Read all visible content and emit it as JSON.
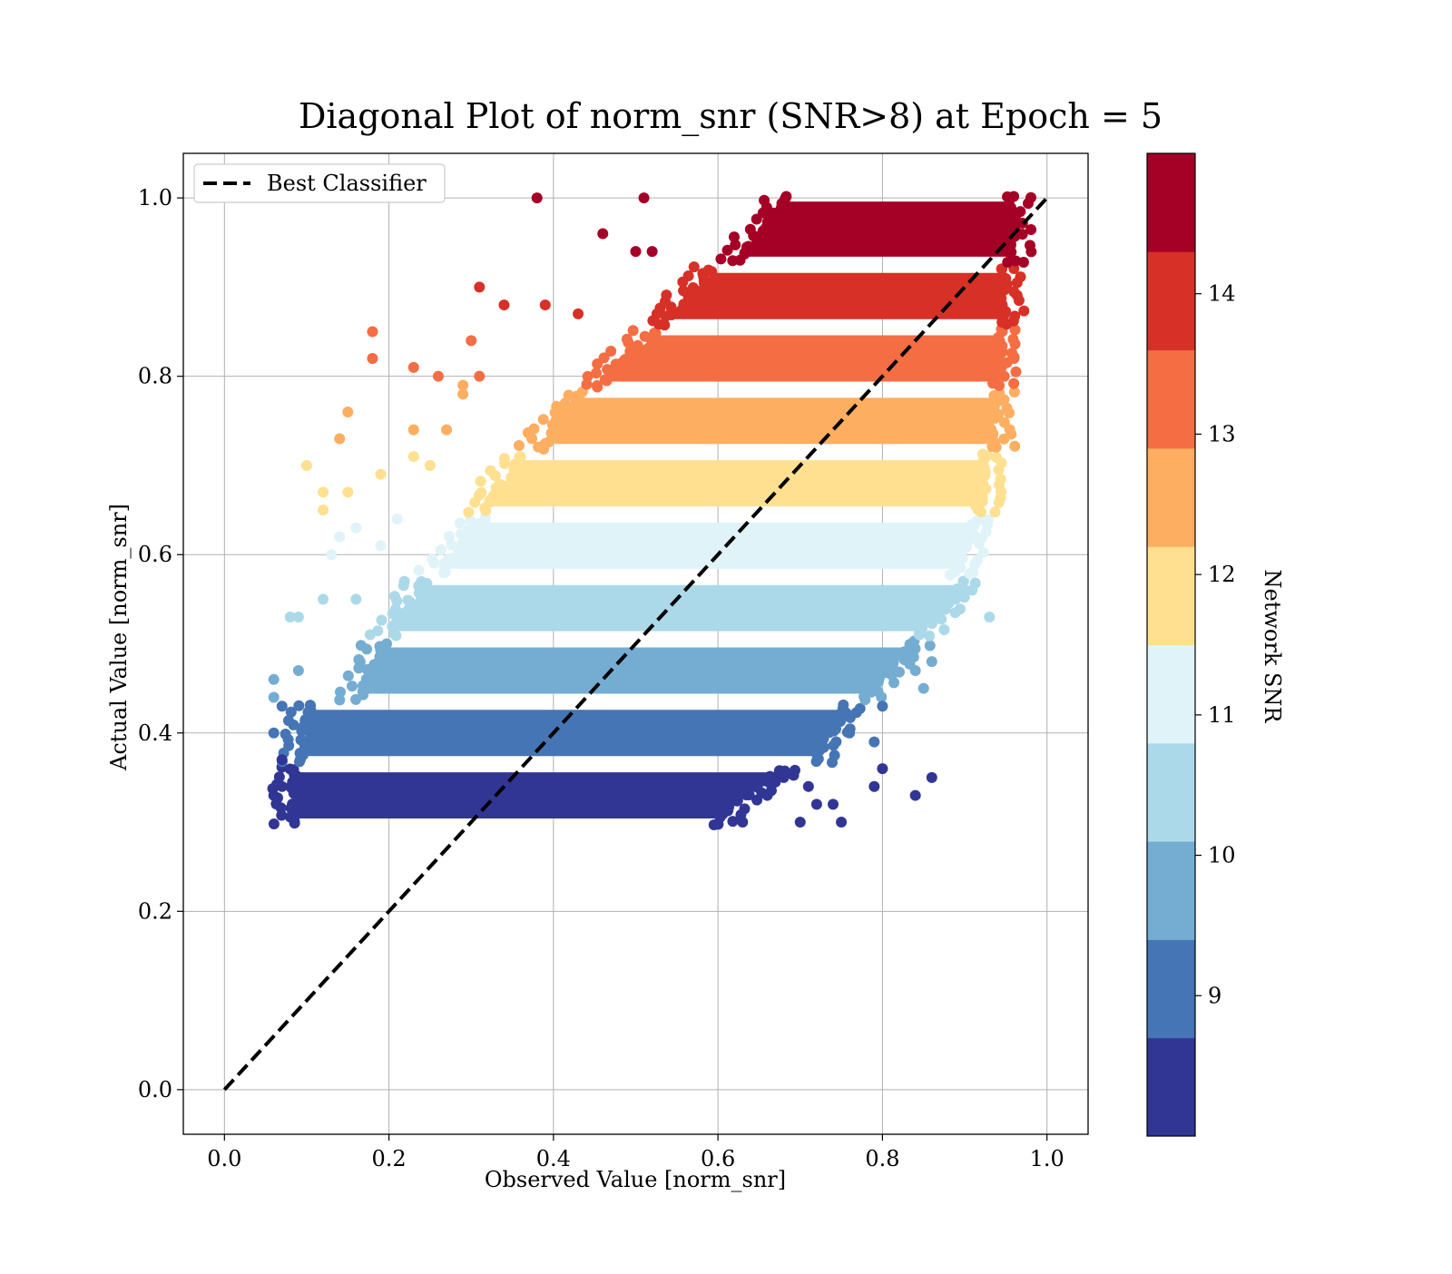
{
  "chart_data": {
    "type": "scatter",
    "title": "Diagonal Plot of norm_snr (SNR>8) at Epoch = 5",
    "xlabel": "Observed Value [norm_snr]",
    "ylabel": "Actual Value [norm_snr]",
    "xlim": [
      -0.05,
      1.05
    ],
    "ylim": [
      -0.05,
      1.05
    ],
    "xticks": [
      0.0,
      0.2,
      0.4,
      0.6,
      0.8,
      1.0
    ],
    "yticks": [
      0.0,
      0.2,
      0.4,
      0.6,
      0.8,
      1.0
    ],
    "xtick_labels": [
      "0.0",
      "0.2",
      "0.4",
      "0.6",
      "0.8",
      "1.0"
    ],
    "ytick_labels": [
      "0.0",
      "0.2",
      "0.4",
      "0.6",
      "0.8",
      "1.0"
    ],
    "grid": true,
    "legend": {
      "location": "upper left",
      "entries": [
        {
          "label": "Best Classifier",
          "style": "dashed",
          "color": "#000000"
        }
      ]
    },
    "reference_line": {
      "name": "Best Classifier",
      "x": [
        0.0,
        1.0
      ],
      "y": [
        0.0,
        1.0
      ]
    },
    "colorbar": {
      "label": "Network SNR",
      "range": [
        8,
        15
      ],
      "ticks": [
        9,
        10,
        11,
        12,
        13,
        14
      ],
      "tick_labels": [
        "9",
        "10",
        "11",
        "12",
        "13",
        "14"
      ],
      "colors": [
        "#313695",
        "#4575b4",
        "#74add1",
        "#abd9e9",
        "#e0f3f8",
        "#fee090",
        "#fdae61",
        "#f46d43",
        "#d73027",
        "#a50026"
      ]
    },
    "bands": [
      {
        "color": "#313695",
        "y": [
          0.3,
          0.36
        ],
        "x": [
          0.08,
          0.6
        ],
        "x_top": [
          0.08,
          0.68
        ]
      },
      {
        "color": "#4575b4",
        "y": [
          0.37,
          0.43
        ],
        "x": [
          0.09,
          0.72
        ],
        "x_top": [
          0.1,
          0.76
        ]
      },
      {
        "color": "#74add1",
        "y": [
          0.44,
          0.5
        ],
        "x": [
          0.16,
          0.78
        ],
        "x_top": [
          0.19,
          0.84
        ]
      },
      {
        "color": "#abd9e9",
        "y": [
          0.51,
          0.57
        ],
        "x": [
          0.2,
          0.85
        ],
        "x_top": [
          0.24,
          0.9
        ]
      },
      {
        "color": "#e0f3f8",
        "y": [
          0.58,
          0.64
        ],
        "x": [
          0.26,
          0.89
        ],
        "x_top": [
          0.31,
          0.92
        ]
      },
      {
        "color": "#fee090",
        "y": [
          0.65,
          0.71
        ],
        "x": [
          0.31,
          0.92
        ],
        "x_top": [
          0.36,
          0.93
        ]
      },
      {
        "color": "#fdae61",
        "y": [
          0.72,
          0.78
        ],
        "x": [
          0.38,
          0.94
        ],
        "x_top": [
          0.43,
          0.94
        ]
      },
      {
        "color": "#f46d43",
        "y": [
          0.79,
          0.85
        ],
        "x": [
          0.45,
          0.94
        ],
        "x_top": [
          0.52,
          0.95
        ]
      },
      {
        "color": "#d73027",
        "y": [
          0.86,
          0.92
        ],
        "x": [
          0.53,
          0.95
        ],
        "x_top": [
          0.59,
          0.95
        ]
      },
      {
        "color": "#a50026",
        "y": [
          0.93,
          1.0
        ],
        "x": [
          0.62,
          0.96
        ],
        "x_top": [
          0.68,
          0.96
        ]
      }
    ],
    "scatter_outliers": [
      {
        "x": 0.38,
        "y": 1.0,
        "color": "#a50026"
      },
      {
        "x": 0.51,
        "y": 1.0,
        "color": "#a50026"
      },
      {
        "x": 0.46,
        "y": 0.96,
        "color": "#a50026"
      },
      {
        "x": 0.5,
        "y": 0.94,
        "color": "#a50026"
      },
      {
        "x": 0.52,
        "y": 0.94,
        "color": "#a50026"
      },
      {
        "x": 0.31,
        "y": 0.9,
        "color": "#d73027"
      },
      {
        "x": 0.34,
        "y": 0.88,
        "color": "#d73027"
      },
      {
        "x": 0.39,
        "y": 0.88,
        "color": "#d73027"
      },
      {
        "x": 0.43,
        "y": 0.87,
        "color": "#d73027"
      },
      {
        "x": 0.18,
        "y": 0.85,
        "color": "#f46d43"
      },
      {
        "x": 0.18,
        "y": 0.82,
        "color": "#f46d43"
      },
      {
        "x": 0.23,
        "y": 0.81,
        "color": "#f46d43"
      },
      {
        "x": 0.26,
        "y": 0.8,
        "color": "#f46d43"
      },
      {
        "x": 0.3,
        "y": 0.84,
        "color": "#f46d43"
      },
      {
        "x": 0.31,
        "y": 0.8,
        "color": "#f46d43"
      },
      {
        "x": 0.96,
        "y": 0.82,
        "color": "#f46d43"
      },
      {
        "x": 0.15,
        "y": 0.76,
        "color": "#fdae61"
      },
      {
        "x": 0.14,
        "y": 0.73,
        "color": "#fdae61"
      },
      {
        "x": 0.23,
        "y": 0.74,
        "color": "#fdae61"
      },
      {
        "x": 0.27,
        "y": 0.74,
        "color": "#fdae61"
      },
      {
        "x": 0.29,
        "y": 0.79,
        "color": "#fdae61"
      },
      {
        "x": 0.29,
        "y": 0.78,
        "color": "#fdae61"
      },
      {
        "x": 0.1,
        "y": 0.7,
        "color": "#fee090"
      },
      {
        "x": 0.12,
        "y": 0.67,
        "color": "#fee090"
      },
      {
        "x": 0.15,
        "y": 0.67,
        "color": "#fee090"
      },
      {
        "x": 0.12,
        "y": 0.65,
        "color": "#fee090"
      },
      {
        "x": 0.19,
        "y": 0.69,
        "color": "#fee090"
      },
      {
        "x": 0.23,
        "y": 0.71,
        "color": "#fee090"
      },
      {
        "x": 0.25,
        "y": 0.7,
        "color": "#fee090"
      },
      {
        "x": 0.13,
        "y": 0.6,
        "color": "#e0f3f8"
      },
      {
        "x": 0.14,
        "y": 0.62,
        "color": "#e0f3f8"
      },
      {
        "x": 0.16,
        "y": 0.63,
        "color": "#e0f3f8"
      },
      {
        "x": 0.19,
        "y": 0.61,
        "color": "#e0f3f8"
      },
      {
        "x": 0.21,
        "y": 0.64,
        "color": "#e0f3f8"
      },
      {
        "x": 0.91,
        "y": 0.58,
        "color": "#e0f3f8"
      },
      {
        "x": 0.08,
        "y": 0.53,
        "color": "#abd9e9"
      },
      {
        "x": 0.09,
        "y": 0.53,
        "color": "#abd9e9"
      },
      {
        "x": 0.12,
        "y": 0.55,
        "color": "#abd9e9"
      },
      {
        "x": 0.16,
        "y": 0.55,
        "color": "#abd9e9"
      },
      {
        "x": 0.9,
        "y": 0.56,
        "color": "#abd9e9"
      },
      {
        "x": 0.93,
        "y": 0.53,
        "color": "#abd9e9"
      },
      {
        "x": 0.87,
        "y": 0.53,
        "color": "#abd9e9"
      },
      {
        "x": 0.06,
        "y": 0.44,
        "color": "#74add1"
      },
      {
        "x": 0.06,
        "y": 0.46,
        "color": "#74add1"
      },
      {
        "x": 0.09,
        "y": 0.47,
        "color": "#74add1"
      },
      {
        "x": 0.85,
        "y": 0.45,
        "color": "#74add1"
      },
      {
        "x": 0.86,
        "y": 0.48,
        "color": "#74add1"
      },
      {
        "x": 0.84,
        "y": 0.47,
        "color": "#74add1"
      },
      {
        "x": 0.06,
        "y": 0.4,
        "color": "#4575b4"
      },
      {
        "x": 0.07,
        "y": 0.43,
        "color": "#4575b4"
      },
      {
        "x": 0.8,
        "y": 0.43,
        "color": "#4575b4"
      },
      {
        "x": 0.79,
        "y": 0.39,
        "color": "#4575b4"
      },
      {
        "x": 0.76,
        "y": 0.4,
        "color": "#4575b4"
      },
      {
        "x": 0.06,
        "y": 0.33,
        "color": "#313695"
      },
      {
        "x": 0.07,
        "y": 0.34,
        "color": "#313695"
      },
      {
        "x": 0.07,
        "y": 0.37,
        "color": "#313695"
      },
      {
        "x": 0.8,
        "y": 0.36,
        "color": "#313695"
      },
      {
        "x": 0.86,
        "y": 0.35,
        "color": "#313695"
      },
      {
        "x": 0.84,
        "y": 0.33,
        "color": "#313695"
      },
      {
        "x": 0.79,
        "y": 0.34,
        "color": "#313695"
      },
      {
        "x": 0.74,
        "y": 0.32,
        "color": "#313695"
      },
      {
        "x": 0.72,
        "y": 0.32,
        "color": "#313695"
      },
      {
        "x": 0.75,
        "y": 0.3,
        "color": "#313695"
      },
      {
        "x": 0.7,
        "y": 0.3,
        "color": "#313695"
      },
      {
        "x": 0.71,
        "y": 0.34,
        "color": "#313695"
      },
      {
        "x": 0.63,
        "y": 0.3,
        "color": "#313695"
      },
      {
        "x": 0.66,
        "y": 0.33,
        "color": "#313695"
      },
      {
        "x": 0.68,
        "y": 0.35,
        "color": "#313695"
      }
    ]
  }
}
